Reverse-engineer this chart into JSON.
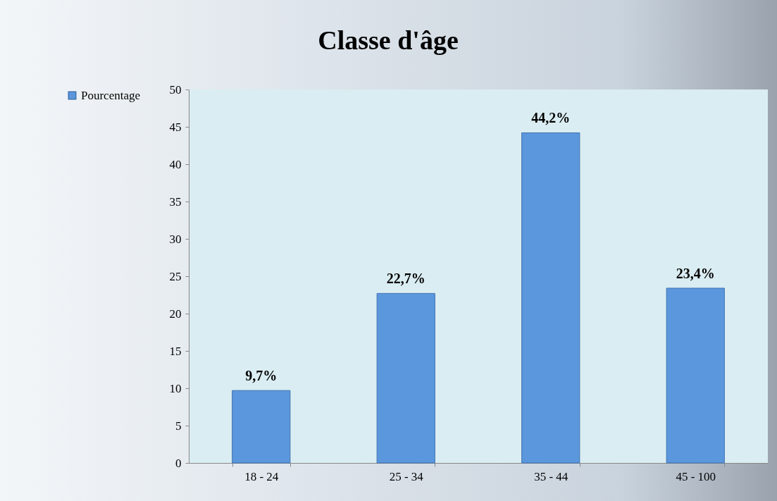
{
  "chart_data": {
    "type": "bar",
    "title": "Classe d'âge",
    "categories": [
      "18 - 24",
      "25 - 34",
      "35 - 44",
      "45 - 100"
    ],
    "series": [
      {
        "name": "Pourcentage",
        "color": "#5b97dd",
        "values": [
          9.7,
          22.7,
          44.2,
          23.4
        ],
        "value_labels": [
          "9,7%",
          "22,7%",
          "44,2%",
          "23,4%"
        ]
      }
    ],
    "ylim": [
      0,
      50
    ],
    "yticks": [
      0,
      5,
      10,
      15,
      20,
      25,
      30,
      35,
      40,
      45,
      50
    ],
    "grid": false,
    "legend": "left"
  }
}
